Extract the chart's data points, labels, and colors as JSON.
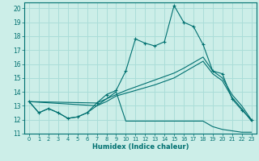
{
  "xlabel": "Humidex (Indice chaleur)",
  "bg_color": "#cceee8",
  "grid_color": "#aaddd8",
  "line_color": "#007070",
  "xlim": [
    -0.5,
    23.5
  ],
  "ylim": [
    11,
    20.4
  ],
  "xticks": [
    0,
    1,
    2,
    3,
    4,
    5,
    6,
    7,
    8,
    9,
    10,
    11,
    12,
    13,
    14,
    15,
    16,
    17,
    18,
    19,
    20,
    21,
    22,
    23
  ],
  "yticks": [
    11,
    12,
    13,
    14,
    15,
    16,
    17,
    18,
    19,
    20
  ],
  "main_x": [
    0,
    1,
    2,
    3,
    4,
    5,
    6,
    7,
    8,
    9,
    10,
    11,
    12,
    13,
    14,
    15,
    16,
    17,
    18,
    19,
    20,
    21,
    22,
    23
  ],
  "main_y": [
    13.3,
    12.5,
    12.8,
    12.5,
    12.1,
    12.2,
    12.5,
    13.2,
    13.8,
    14.1,
    15.5,
    17.8,
    17.5,
    17.3,
    17.6,
    20.2,
    19.0,
    18.7,
    17.4,
    15.5,
    15.3,
    13.5,
    12.7,
    12.0
  ],
  "bot_x": [
    0,
    1,
    2,
    3,
    4,
    5,
    6,
    7,
    8,
    9,
    10,
    11,
    12,
    13,
    14,
    15,
    16,
    17,
    18,
    19,
    20,
    21,
    22,
    23
  ],
  "bot_y": [
    13.3,
    12.5,
    12.8,
    12.5,
    12.1,
    12.2,
    12.5,
    13.0,
    13.5,
    14.0,
    11.9,
    11.9,
    11.9,
    11.9,
    11.9,
    11.9,
    11.9,
    11.9,
    11.9,
    11.5,
    11.3,
    11.2,
    11.1,
    11.1
  ],
  "diag1_x": [
    0,
    7,
    8,
    9,
    10,
    11,
    12,
    13,
    14,
    15,
    16,
    17,
    18,
    19,
    20,
    21,
    22,
    23
  ],
  "diag1_y": [
    13.3,
    13.2,
    13.5,
    13.8,
    14.1,
    14.35,
    14.6,
    14.85,
    15.1,
    15.35,
    15.7,
    16.1,
    16.5,
    15.5,
    15.0,
    13.8,
    13.0,
    12.0
  ],
  "diag2_x": [
    0,
    7,
    8,
    9,
    10,
    11,
    12,
    13,
    14,
    15,
    16,
    17,
    18,
    19,
    20,
    21,
    22,
    23
  ],
  "diag2_y": [
    13.3,
    13.0,
    13.3,
    13.7,
    13.9,
    14.1,
    14.3,
    14.5,
    14.75,
    15.0,
    15.4,
    15.8,
    16.2,
    15.3,
    14.8,
    13.6,
    12.8,
    11.9
  ]
}
